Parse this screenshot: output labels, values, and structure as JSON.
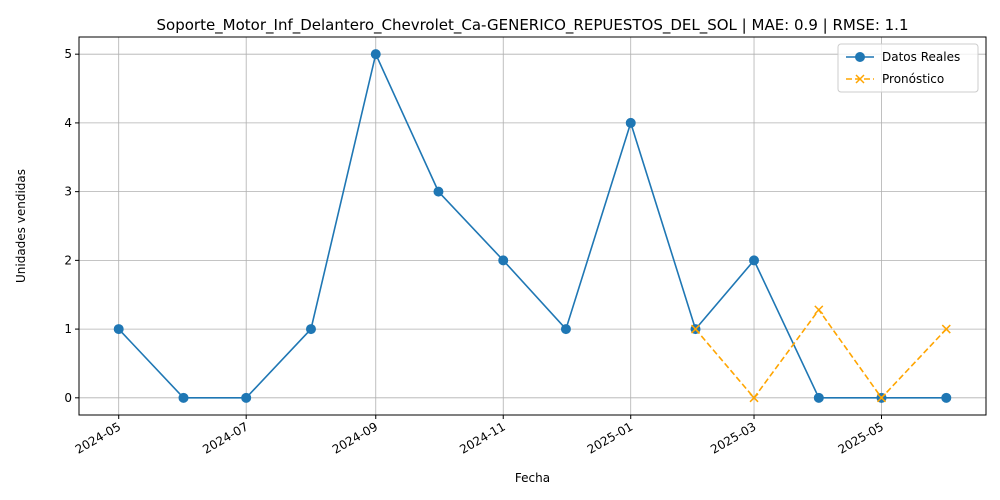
{
  "chart_data": {
    "type": "line",
    "title": "Soporte_Motor_Inf_Delantero_Chevrolet_Ca-GENERICO_REPUESTOS_DEL_SOL | MAE: 0.9 | RMSE: 1.1",
    "xlabel": "Fecha",
    "ylabel": "Unidades vendidas",
    "xlim": [
      "2024-04-12",
      "2025-06-20"
    ],
    "ylim": [
      -0.25,
      5.25
    ],
    "x_ticks": [
      "2024-05",
      "2024-07",
      "2024-09",
      "2024-11",
      "2025-01",
      "2025-03",
      "2025-05"
    ],
    "y_ticks": [
      0,
      1,
      2,
      3,
      4,
      5
    ],
    "grid": true,
    "legend_position": "top-right",
    "series": [
      {
        "name": "Datos Reales",
        "color": "#1f77b4",
        "marker": "circle",
        "linestyle": "solid",
        "x": [
          "2024-05-01",
          "2024-06-01",
          "2024-07-01",
          "2024-08-01",
          "2024-09-01",
          "2024-10-01",
          "2024-11-01",
          "2024-12-01",
          "2025-01-01",
          "2025-02-01",
          "2025-03-01",
          "2025-04-01",
          "2025-05-01",
          "2025-06-01"
        ],
        "values": [
          1,
          0,
          0,
          1,
          5,
          3,
          2,
          1,
          4,
          1,
          2,
          0,
          0,
          0
        ]
      },
      {
        "name": "Pronóstico",
        "color": "#ffa500",
        "marker": "x",
        "linestyle": "dashed",
        "x": [
          "2025-02-01",
          "2025-03-01",
          "2025-04-01",
          "2025-05-01",
          "2025-06-01"
        ],
        "values": [
          1,
          0,
          1.28,
          0,
          1
        ]
      }
    ]
  }
}
